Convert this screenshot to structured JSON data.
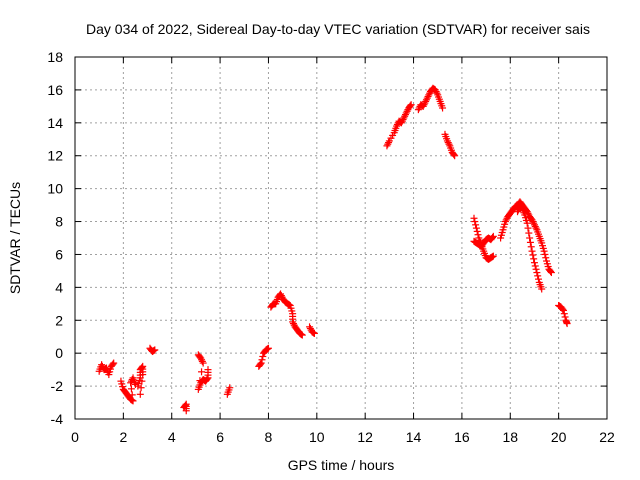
{
  "chart_data": {
    "type": "scatter",
    "title": "Day 034 of 2022, Sidereal Day-to-day VTEC variation (SDTVAR) for receiver sais",
    "xlabel": "GPS time / hours",
    "ylabel": "SDTVAR / TECUs",
    "xlim": [
      0,
      22
    ],
    "ylim": [
      -4,
      18
    ],
    "xticks": [
      0,
      2,
      4,
      6,
      8,
      10,
      12,
      14,
      16,
      18,
      20,
      22
    ],
    "yticks": [
      -4,
      -2,
      0,
      2,
      4,
      6,
      8,
      10,
      12,
      14,
      16,
      18
    ],
    "grid": true,
    "marker": "+",
    "color": "#ff0000",
    "segments": [
      {
        "name": "seg1",
        "points": [
          [
            1.0,
            -1.1
          ],
          [
            1.1,
            -0.7
          ],
          [
            1.2,
            -1.0
          ],
          [
            1.3,
            -0.9
          ],
          [
            1.4,
            -1.3
          ],
          [
            1.5,
            -0.8
          ],
          [
            1.6,
            -0.6
          ]
        ]
      },
      {
        "name": "seg2",
        "points": [
          [
            1.9,
            -1.7
          ],
          [
            2.0,
            -2.2
          ],
          [
            2.1,
            -2.4
          ],
          [
            2.2,
            -2.6
          ],
          [
            2.3,
            -2.8
          ],
          [
            2.4,
            -2.9
          ],
          [
            2.3,
            -1.8
          ],
          [
            2.4,
            -1.5
          ],
          [
            2.5,
            -1.9
          ]
        ]
      },
      {
        "name": "seg3",
        "points": [
          [
            2.6,
            -2.0
          ],
          [
            2.7,
            -1.5
          ],
          [
            2.7,
            -1.0
          ],
          [
            2.8,
            -0.8
          ],
          [
            2.8,
            -1.3
          ],
          [
            2.7,
            -2.5
          ]
        ]
      },
      {
        "name": "seg4",
        "points": [
          [
            3.1,
            0.3
          ],
          [
            3.2,
            0.1
          ],
          [
            3.3,
            0.2
          ]
        ]
      },
      {
        "name": "seg5",
        "points": [
          [
            4.5,
            -3.3
          ],
          [
            4.6,
            -3.1
          ],
          [
            4.6,
            -3.5
          ]
        ]
      },
      {
        "name": "seg6",
        "points": [
          [
            5.1,
            -0.1
          ],
          [
            5.2,
            -0.3
          ],
          [
            5.3,
            -0.6
          ],
          [
            5.1,
            -2.2
          ],
          [
            5.2,
            -1.8
          ],
          [
            5.3,
            -1.6
          ],
          [
            5.4,
            -1.7
          ],
          [
            5.5,
            -1.5
          ],
          [
            5.5,
            -1.0
          ]
        ]
      },
      {
        "name": "seg7",
        "points": [
          [
            6.3,
            -2.5
          ],
          [
            6.4,
            -2.1
          ]
        ]
      },
      {
        "name": "seg8",
        "points": [
          [
            7.6,
            -0.8
          ],
          [
            7.7,
            -0.6
          ],
          [
            7.8,
            0.0
          ],
          [
            7.9,
            0.2
          ],
          [
            8.0,
            0.3
          ]
        ]
      },
      {
        "name": "seg9",
        "points": [
          [
            8.1,
            2.8
          ],
          [
            8.2,
            3.0
          ],
          [
            8.3,
            3.0
          ],
          [
            8.4,
            3.4
          ],
          [
            8.5,
            3.6
          ],
          [
            8.6,
            3.3
          ],
          [
            8.7,
            3.1
          ],
          [
            8.8,
            3.0
          ],
          [
            8.9,
            2.9
          ],
          [
            9.0,
            2.4
          ],
          [
            9.0,
            1.9
          ],
          [
            9.1,
            1.6
          ],
          [
            9.2,
            1.4
          ],
          [
            9.3,
            1.2
          ],
          [
            9.4,
            1.1
          ]
        ]
      },
      {
        "name": "seg10",
        "points": [
          [
            9.7,
            1.6
          ],
          [
            9.8,
            1.3
          ],
          [
            9.9,
            1.2
          ]
        ]
      },
      {
        "name": "seg11",
        "points": [
          [
            12.9,
            12.6
          ],
          [
            13.0,
            12.9
          ],
          [
            13.2,
            13.4
          ],
          [
            13.3,
            13.8
          ],
          [
            13.4,
            14.1
          ],
          [
            13.5,
            14.0
          ],
          [
            13.6,
            14.3
          ],
          [
            13.7,
            14.6
          ],
          [
            13.8,
            14.9
          ],
          [
            13.9,
            15.1
          ]
        ]
      },
      {
        "name": "seg12",
        "points": [
          [
            14.2,
            14.8
          ],
          [
            14.3,
            15.1
          ],
          [
            14.4,
            15.0
          ],
          [
            14.5,
            15.3
          ],
          [
            14.6,
            15.6
          ],
          [
            14.7,
            15.9
          ],
          [
            14.8,
            16.1
          ],
          [
            14.9,
            16.0
          ],
          [
            15.0,
            15.7
          ],
          [
            15.1,
            15.3
          ],
          [
            15.2,
            14.9
          ]
        ]
      },
      {
        "name": "seg13",
        "points": [
          [
            15.3,
            13.3
          ],
          [
            15.4,
            12.9
          ],
          [
            15.5,
            12.6
          ],
          [
            15.6,
            12.2
          ],
          [
            15.7,
            12.0
          ]
        ]
      },
      {
        "name": "seg14",
        "points": [
          [
            16.5,
            8.2
          ],
          [
            16.6,
            7.6
          ],
          [
            16.7,
            7.0
          ],
          [
            16.8,
            6.6
          ],
          [
            16.9,
            6.2
          ],
          [
            17.0,
            5.8
          ],
          [
            17.1,
            5.7
          ],
          [
            17.2,
            5.8
          ],
          [
            17.3,
            5.9
          ]
        ]
      },
      {
        "name": "seg15",
        "points": [
          [
            16.5,
            6.8
          ],
          [
            16.6,
            6.7
          ],
          [
            16.7,
            6.6
          ],
          [
            16.8,
            6.5
          ],
          [
            16.9,
            6.7
          ],
          [
            17.0,
            6.9
          ],
          [
            17.1,
            7.0
          ],
          [
            17.2,
            6.9
          ],
          [
            17.3,
            7.1
          ]
        ]
      },
      {
        "name": "seg16",
        "points": [
          [
            17.6,
            7.0
          ],
          [
            17.7,
            7.5
          ],
          [
            17.8,
            8.0
          ],
          [
            17.9,
            8.3
          ],
          [
            18.0,
            8.5
          ],
          [
            18.1,
            8.7
          ],
          [
            18.2,
            8.9
          ],
          [
            18.3,
            9.0
          ],
          [
            18.4,
            9.2
          ],
          [
            18.5,
            9.0
          ],
          [
            18.6,
            8.8
          ],
          [
            18.7,
            8.6
          ],
          [
            18.8,
            8.3
          ],
          [
            18.9,
            8.1
          ],
          [
            19.0,
            7.8
          ],
          [
            19.1,
            7.5
          ],
          [
            19.2,
            7.1
          ],
          [
            19.3,
            6.7
          ],
          [
            19.4,
            6.2
          ],
          [
            19.5,
            5.6
          ],
          [
            19.6,
            5.1
          ],
          [
            19.7,
            4.9
          ]
        ]
      },
      {
        "name": "seg17",
        "points": [
          [
            18.3,
            8.6
          ],
          [
            18.4,
            8.9
          ],
          [
            18.5,
            8.8
          ],
          [
            18.6,
            8.4
          ],
          [
            18.7,
            7.9
          ],
          [
            18.8,
            7.0
          ],
          [
            18.9,
            6.2
          ],
          [
            19.0,
            5.5
          ],
          [
            19.1,
            4.9
          ],
          [
            19.2,
            4.3
          ],
          [
            19.3,
            3.9
          ]
        ]
      },
      {
        "name": "seg18",
        "points": [
          [
            20.0,
            2.9
          ],
          [
            20.1,
            2.8
          ],
          [
            20.2,
            2.6
          ],
          [
            20.3,
            2.0
          ],
          [
            20.35,
            1.8
          ]
        ]
      }
    ]
  }
}
